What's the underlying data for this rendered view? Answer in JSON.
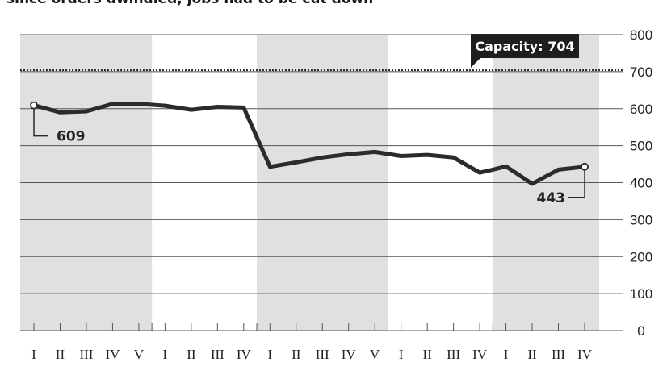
{
  "header": {
    "subtitle": "since orders dwindled, jobs had to be cut down"
  },
  "chart_data": {
    "type": "line",
    "title": "",
    "xlabel": "",
    "ylabel": "",
    "ylim": [
      0,
      800
    ],
    "yticks": [
      "0",
      "100",
      "200",
      "300",
      "400",
      "500",
      "600",
      "700",
      "800"
    ],
    "grid": true,
    "categories": [
      "I",
      "II",
      "III",
      "IV",
      "V",
      "I",
      "II",
      "III",
      "IV",
      "I",
      "II",
      "III",
      "IV",
      "V",
      "I",
      "II",
      "III",
      "IV",
      "I",
      "II",
      "III",
      "IV"
    ],
    "period_sizes": [
      5,
      4,
      5,
      4,
      4
    ],
    "shaded_periods": [
      0,
      2,
      4
    ],
    "series": [
      {
        "name": "",
        "points": [
          {
            "x": 0,
            "y": 609
          },
          {
            "x": 1,
            "y": 590
          },
          {
            "x": 2,
            "y": 593
          },
          {
            "x": 3,
            "y": 613
          },
          {
            "x": 4,
            "y": 613
          },
          {
            "x": 5,
            "y": 608
          },
          {
            "x": 6,
            "y": 597
          },
          {
            "x": 7,
            "y": 605
          },
          {
            "x": 8,
            "y": 603
          },
          {
            "x": 9,
            "y": 443
          },
          {
            "x": 10,
            "y": 455
          },
          {
            "x": 11,
            "y": 468
          },
          {
            "x": 12,
            "y": 477
          },
          {
            "x": 13,
            "y": 483
          },
          {
            "x": 14,
            "y": 472
          },
          {
            "x": 15,
            "y": 475
          },
          {
            "x": 16,
            "y": 468
          },
          {
            "x": 17,
            "y": 427
          },
          {
            "x": 17.5,
            "y": 435
          },
          {
            "x": 18,
            "y": 444
          },
          {
            "x": 19,
            "y": 397
          },
          {
            "x": 20,
            "y": 435
          },
          {
            "x": 21,
            "y": 443
          }
        ]
      }
    ],
    "reference_line": {
      "label": "Capacity: 704",
      "value": 704
    },
    "annotations": [
      {
        "label": "609",
        "index": 0,
        "value": 609
      },
      {
        "label": "443",
        "index": 21,
        "value": 443
      }
    ]
  }
}
